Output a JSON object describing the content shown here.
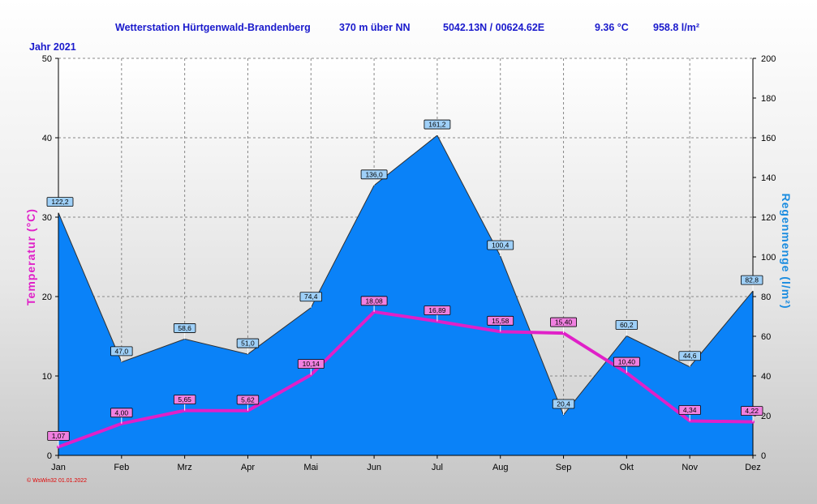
{
  "header": {
    "station": "Wetterstation Hürtgenwald-Brandenberg",
    "altitude": "370 m über NN",
    "coords": "5042.13N / 00624.62E",
    "avg_temp": "9.36 °C",
    "total_rain": "958.8 l/m²",
    "year_label": "Jahr  2021"
  },
  "footer": "© WsWin32  01.01.2022",
  "colors": {
    "rain_fill": "#0a82f8",
    "temp_line": "#e020c8",
    "header_text": "#1a1acc"
  },
  "chart_data": {
    "type": "area",
    "categories": [
      "Jan",
      "Feb",
      "Mrz",
      "Apr",
      "Mai",
      "Jun",
      "Jul",
      "Aug",
      "Sep",
      "Okt",
      "Nov",
      "Dez"
    ],
    "series": [
      {
        "name": "Temperatur",
        "axis": "left",
        "type": "line",
        "values": [
          1.07,
          4.0,
          5.65,
          5.62,
          10.14,
          18.08,
          16.89,
          15.58,
          15.4,
          10.4,
          4.34,
          4.22
        ],
        "labels": [
          "1,07",
          "4,00",
          "5,65",
          "5,62",
          "10,14",
          "18,08",
          "16,89",
          "15,58",
          "15,40",
          "10,40",
          "4,34",
          "4,22"
        ]
      },
      {
        "name": "Regenmenge",
        "axis": "right",
        "type": "area",
        "values": [
          122.2,
          47.0,
          58.6,
          51.0,
          74.4,
          136.0,
          161.2,
          100.4,
          20.4,
          60.2,
          44.6,
          82.8
        ],
        "labels": [
          "122,2",
          "47,0",
          "58,6",
          "51,0",
          "74,4",
          "136,0",
          "161,2",
          "100,4",
          "20,4",
          "60,2",
          "44,6",
          "82,8"
        ]
      }
    ],
    "ylabel_left": "Temperatur  (°C)",
    "ylabel_right": "Regenmenge  (l/m²)",
    "ylim_left": [
      0,
      50
    ],
    "yticks_left": [
      0,
      10,
      20,
      30,
      40,
      50
    ],
    "ylim_right": [
      0,
      200
    ],
    "yticks_right": [
      0,
      20,
      40,
      60,
      80,
      100,
      120,
      140,
      160,
      180,
      200
    ],
    "grid": true
  }
}
